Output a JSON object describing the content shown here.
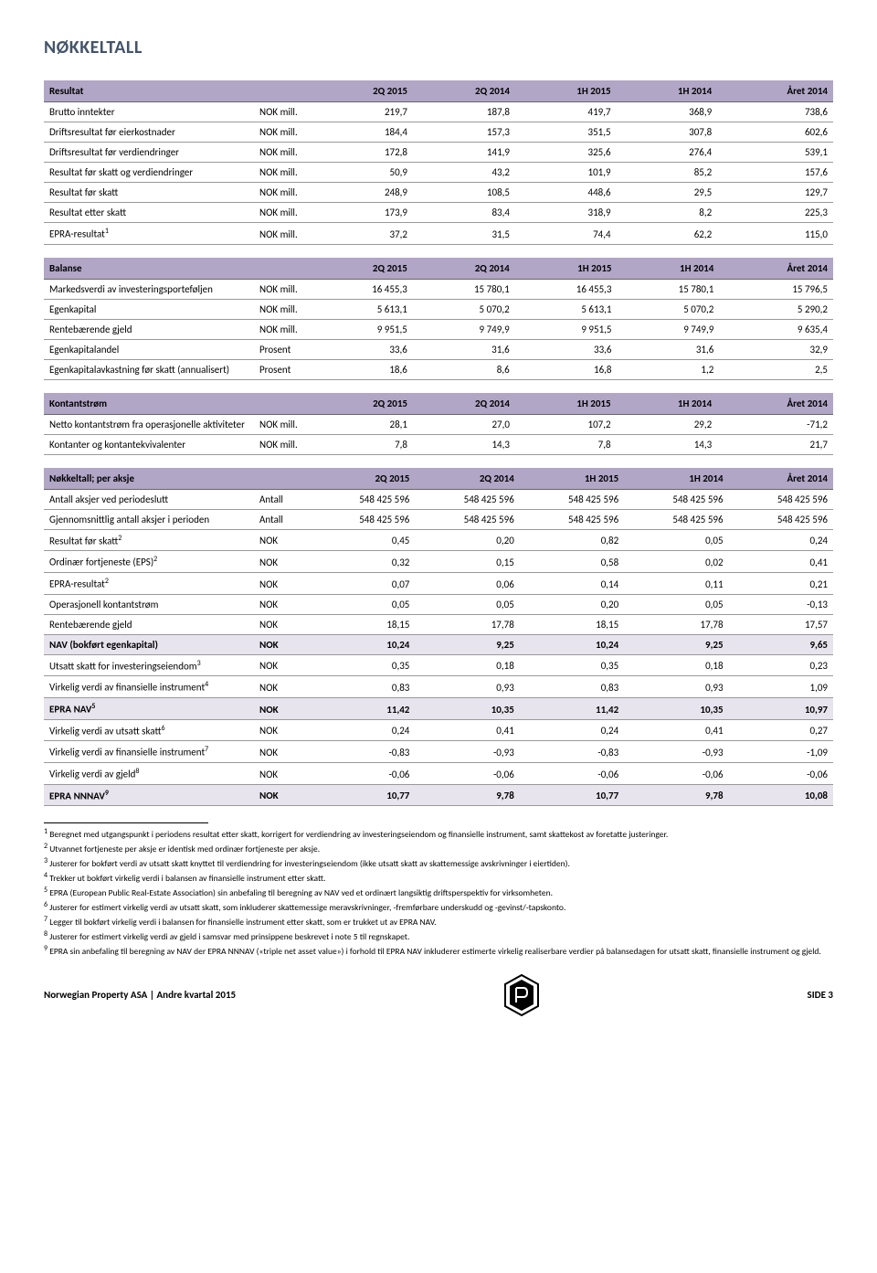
{
  "title": "NØKKELTALL",
  "periods": [
    "2Q 2015",
    "2Q 2014",
    "1H 2015",
    "1H 2014",
    "Året 2014"
  ],
  "tables": {
    "resultat": {
      "header": "Resultat",
      "rows": [
        {
          "label": "Brutto inntekter",
          "unit": "NOK mill.",
          "v": [
            "219,7",
            "187,8",
            "419,7",
            "368,9",
            "738,6"
          ]
        },
        {
          "label": "Driftsresultat før eierkostnader",
          "unit": "NOK mill.",
          "v": [
            "184,4",
            "157,3",
            "351,5",
            "307,8",
            "602,6"
          ]
        },
        {
          "label": "Driftsresultat før verdiendringer",
          "unit": "NOK mill.",
          "v": [
            "172,8",
            "141,9",
            "325,6",
            "276,4",
            "539,1"
          ]
        },
        {
          "label": "Resultat før skatt og verdiendringer",
          "unit": "NOK mill.",
          "v": [
            "50,9",
            "43,2",
            "101,9",
            "85,2",
            "157,6"
          ]
        },
        {
          "label": "Resultat før skatt",
          "unit": "NOK mill.",
          "v": [
            "248,9",
            "108,5",
            "448,6",
            "29,5",
            "129,7"
          ]
        },
        {
          "label": "Resultat etter skatt",
          "unit": "NOK mill.",
          "v": [
            "173,9",
            "83,4",
            "318,9",
            "8,2",
            "225,3"
          ]
        },
        {
          "label": "EPRA-resultat",
          "sup": "1",
          "unit": "NOK mill.",
          "v": [
            "37,2",
            "31,5",
            "74,4",
            "62,2",
            "115,0"
          ]
        }
      ]
    },
    "balanse": {
      "header": "Balanse",
      "rows": [
        {
          "label": "Markedsverdi av investeringsporteføljen",
          "unit": "NOK mill.",
          "v": [
            "16 455,3",
            "15 780,1",
            "16 455,3",
            "15 780,1",
            "15 796,5"
          ]
        },
        {
          "label": "Egenkapital",
          "unit": "NOK mill.",
          "v": [
            "5 613,1",
            "5 070,2",
            "5 613,1",
            "5 070,2",
            "5 290,2"
          ]
        },
        {
          "label": "Rentebærende gjeld",
          "unit": "NOK mill.",
          "v": [
            "9 951,5",
            "9 749,9",
            "9 951,5",
            "9 749,9",
            "9 635,4"
          ]
        },
        {
          "label": "Egenkapitalandel",
          "unit": "Prosent",
          "v": [
            "33,6",
            "31,6",
            "33,6",
            "31,6",
            "32,9"
          ]
        },
        {
          "label": "Egenkapitalavkastning før skatt (annualisert)",
          "unit": "Prosent",
          "v": [
            "18,6",
            "8,6",
            "16,8",
            "1,2",
            "2,5"
          ]
        }
      ]
    },
    "kontant": {
      "header": "Kontantstrøm",
      "rows": [
        {
          "label": "Netto kontantstrøm fra operasjonelle aktiviteter",
          "unit": "NOK mill.",
          "v": [
            "28,1",
            "27,0",
            "107,2",
            "29,2",
            "-71,2"
          ]
        },
        {
          "label": "Kontanter og kontantekvivalenter",
          "unit": "NOK mill.",
          "v": [
            "7,8",
            "14,3",
            "7,8",
            "14,3",
            "21,7"
          ]
        }
      ]
    },
    "peraksje": {
      "header": "Nøkkeltall; per aksje",
      "rows": [
        {
          "label": "Antall aksjer ved periodeslutt",
          "unit": "Antall",
          "v": [
            "548 425 596",
            "548 425 596",
            "548 425 596",
            "548 425 596",
            "548 425 596"
          ]
        },
        {
          "label": "Gjennomsnittlig antall aksjer i perioden",
          "unit": "Antall",
          "v": [
            "548 425 596",
            "548 425 596",
            "548 425 596",
            "548 425 596",
            "548 425 596"
          ]
        },
        {
          "label": "Resultat før skatt",
          "sup": "2",
          "unit": "NOK",
          "v": [
            "0,45",
            "0,20",
            "0,82",
            "0,05",
            "0,24"
          ]
        },
        {
          "label": "Ordinær fortjeneste (EPS)",
          "sup": "2",
          "unit": "NOK",
          "v": [
            "0,32",
            "0,15",
            "0,58",
            "0,02",
            "0,41"
          ]
        },
        {
          "label": "EPRA-resultat",
          "sup": "2",
          "unit": "NOK",
          "v": [
            "0,07",
            "0,06",
            "0,14",
            "0,11",
            "0,21"
          ]
        },
        {
          "label": "Operasjonell kontantstrøm",
          "unit": "NOK",
          "v": [
            "0,05",
            "0,05",
            "0,20",
            "0,05",
            "-0,13"
          ]
        },
        {
          "label": "Rentebærende gjeld",
          "unit": "NOK",
          "v": [
            "18,15",
            "17,78",
            "18,15",
            "17,78",
            "17,57"
          ]
        },
        {
          "label": "NAV (bokført egenkapital)",
          "unit": "NOK",
          "v": [
            "10,24",
            "9,25",
            "10,24",
            "9,25",
            "9,65"
          ],
          "bold": true,
          "shade": true
        },
        {
          "label": "Utsatt skatt for investeringseiendom",
          "sup": "3",
          "unit": "NOK",
          "v": [
            "0,35",
            "0,18",
            "0,35",
            "0,18",
            "0,23"
          ]
        },
        {
          "label": "Virkelig verdi av finansielle instrument",
          "sup": "4",
          "unit": "NOK",
          "v": [
            "0,83",
            "0,93",
            "0,83",
            "0,93",
            "1,09"
          ]
        },
        {
          "label": "EPRA NAV",
          "sup": "5",
          "unit": "NOK",
          "v": [
            "11,42",
            "10,35",
            "11,42",
            "10,35",
            "10,97"
          ],
          "bold": true,
          "shade": true
        },
        {
          "label": "Virkelig verdi av utsatt skatt",
          "sup": "6",
          "unit": "NOK",
          "v": [
            "0,24",
            "0,41",
            "0,24",
            "0,41",
            "0,27"
          ]
        },
        {
          "label": "Virkelig verdi av finansielle instrument",
          "sup": "7",
          "unit": "NOK",
          "v": [
            "-0,83",
            "-0,93",
            "-0,83",
            "-0,93",
            "-1,09"
          ]
        },
        {
          "label": "Virkelig verdi av gjeld",
          "sup": "8",
          "unit": "NOK",
          "v": [
            "-0,06",
            "-0,06",
            "-0,06",
            "-0,06",
            "-0,06"
          ]
        },
        {
          "label": "EPRA NNNAV",
          "sup": "9",
          "unit": "NOK",
          "v": [
            "10,77",
            "9,78",
            "10,77",
            "9,78",
            "10,08"
          ],
          "bold": true,
          "shade": true
        }
      ]
    }
  },
  "footnotes": [
    "Beregnet med utgangspunkt i periodens resultat etter skatt, korrigert for verdiendring av investeringseiendom og finansielle instrument, samt skattekost av foretatte justeringer.",
    "Utvannet fortjeneste per aksje er identisk med ordinær fortjeneste per aksje.",
    "Justerer for bokført verdi av utsatt skatt knyttet til verdiendring for investeringseiendom (ikke utsatt skatt av skattemessige avskrivninger i eiertiden).",
    "Trekker ut bokført virkelig verdi i balansen av finansielle instrument etter skatt.",
    "EPRA (European Public Real-Estate Association) sin anbefaling til beregning av NAV ved et ordinært langsiktig driftsperspektiv for virksomheten.",
    "Justerer for estimert virkelig verdi av utsatt skatt, som inkluderer skattemessige meravskrivninger, -fremførbare underskudd og -gevinst/-tapskonto.",
    "Legger til bokført virkelig verdi i balansen for finansielle instrument etter skatt, som er trukket ut av EPRA NAV.",
    "Justerer for estimert virkelig verdi av gjeld i samsvar med prinsippene beskrevet i note 5 til regnskapet.",
    "EPRA sin anbefaling til beregning av NAV der EPRA NNNAV («triple net asset value») i forhold til EPRA NAV inkluderer estimerte virkelig realiserbare verdier på balansedagen for utsatt skatt, finansielle instrument og gjeld."
  ],
  "footer": {
    "left": "Norwegian Property ASA | Andre kvartal 2015",
    "right": "SIDE 3"
  },
  "colors": {
    "header_bg": "#b1a6c6",
    "shade_bg": "#e8e4ee",
    "title_color": "#44546a",
    "border": "#999999"
  }
}
